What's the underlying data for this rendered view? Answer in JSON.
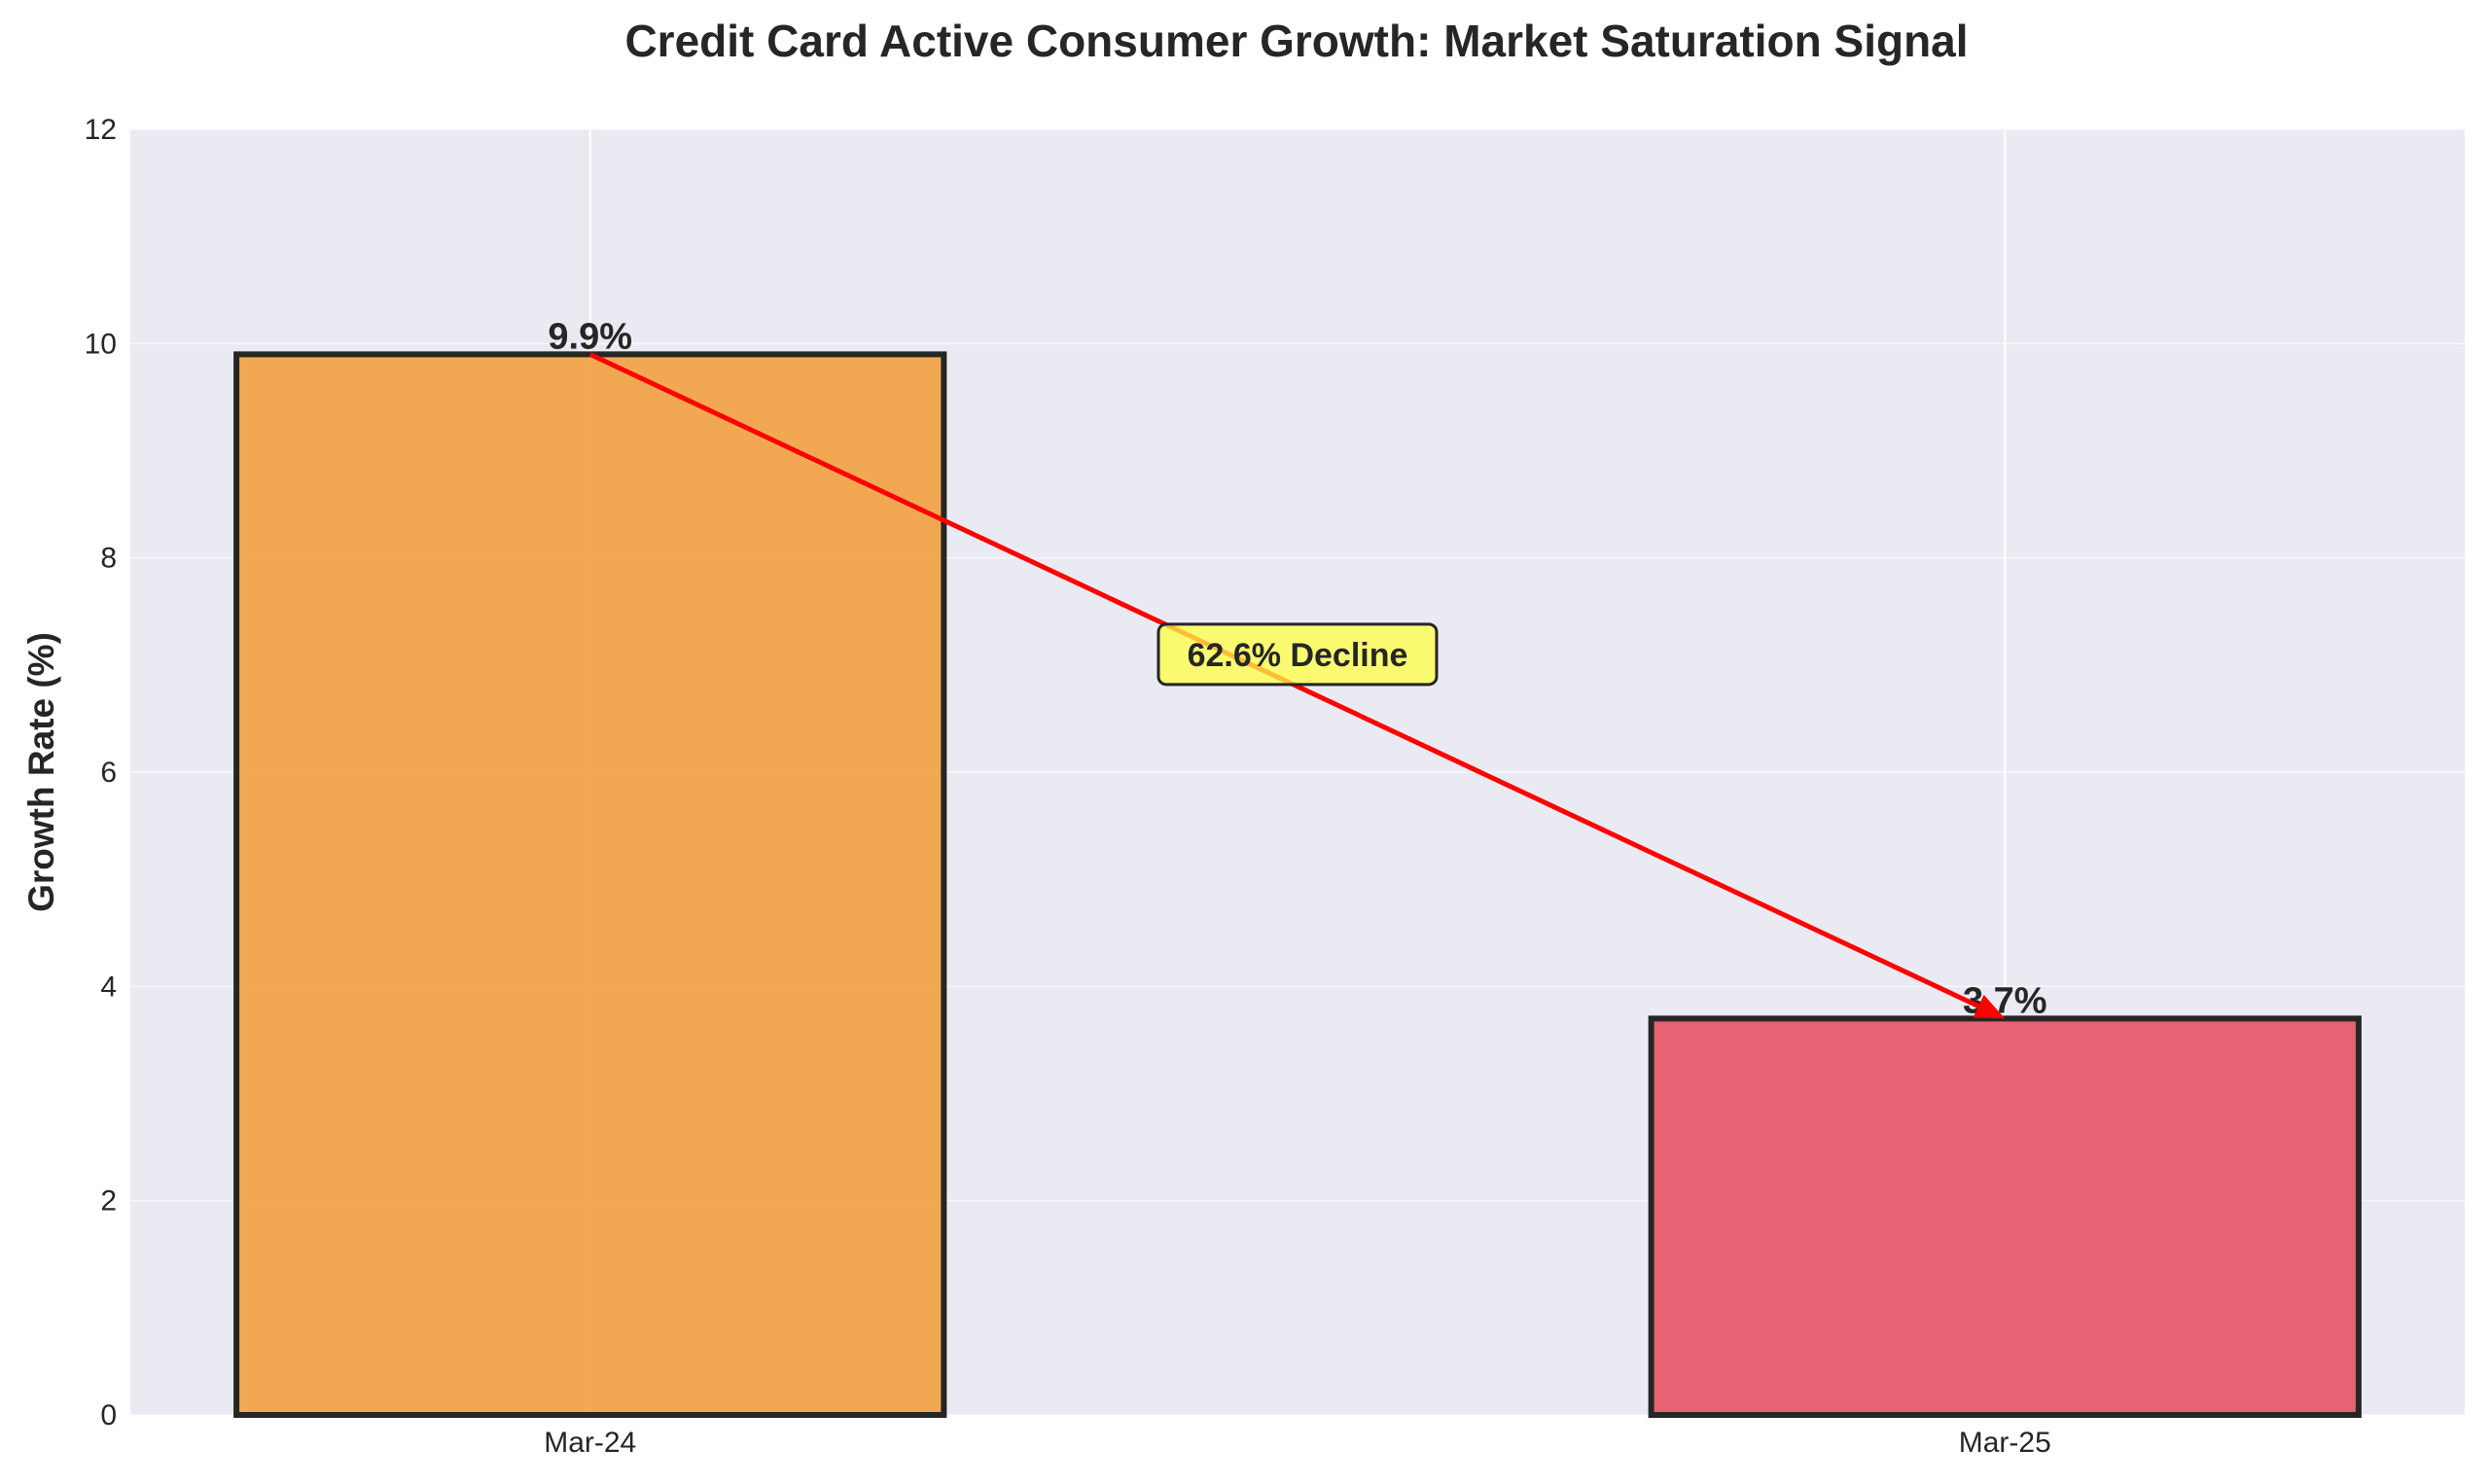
{
  "chart_data": {
    "type": "bar",
    "title": "Credit Card Active Consumer Growth: Market Saturation Signal",
    "xlabel": "",
    "ylabel": "Growth Rate (%)",
    "categories": [
      "Mar-24",
      "Mar-25"
    ],
    "values": [
      9.9,
      3.7
    ],
    "value_labels": [
      "9.9%",
      "3.7%"
    ],
    "colors": [
      "#f2a44a",
      "#e55c6a"
    ],
    "edge_color": "#262626",
    "ylim": [
      0,
      12
    ],
    "yticks": [
      0,
      2,
      4,
      6,
      8,
      10,
      12
    ],
    "ytick_labels": [
      "0",
      "2",
      "4",
      "6",
      "8",
      "10",
      "12"
    ],
    "grid": true,
    "background": "#eaeaf2",
    "annotation": {
      "text": "62.6% Decline",
      "from": {
        "x": "Mar-24",
        "y": 9.9
      },
      "to": {
        "x": "Mar-25",
        "y": 3.7
      },
      "arrow_color": "#ff0000",
      "box_color": "#ffff44"
    }
  }
}
